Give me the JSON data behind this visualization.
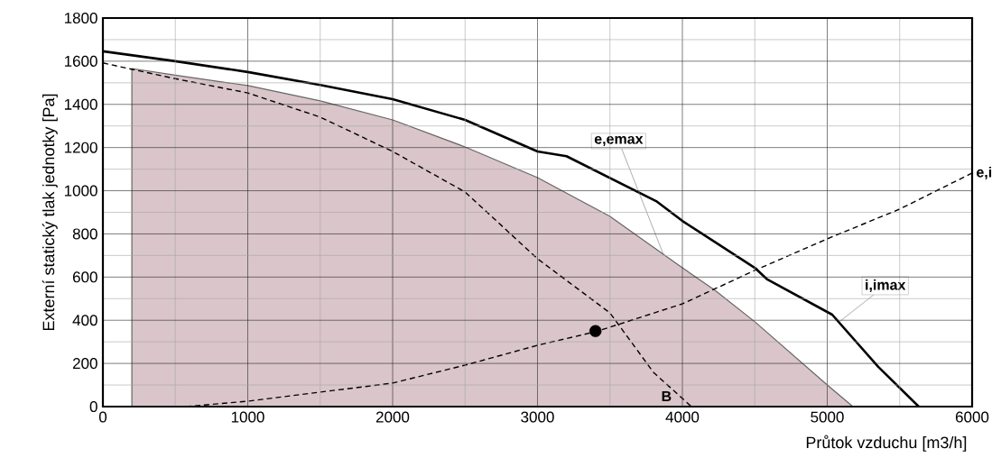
{
  "chart_data": {
    "type": "line",
    "xlabel": "Průtok vzduchu [m3/h]",
    "ylabel": "Externí statický tlak jednotky [Pa]",
    "xlim": [
      0,
      6000
    ],
    "ylim": [
      0,
      1800
    ],
    "xticks": [
      0,
      1000,
      2000,
      3000,
      4000,
      5000,
      6000
    ],
    "yticks": [
      0,
      200,
      400,
      600,
      800,
      1000,
      1200,
      1400,
      1600,
      1800
    ],
    "grid": true,
    "series": [
      {
        "type": "area",
        "color": "#d9c5ca",
        "x": [
          200,
          500,
          1000,
          1500,
          2000,
          2500,
          3000,
          3500,
          4000,
          4225,
          4500,
          5000,
          5177
        ],
        "values": [
          1566,
          1535,
          1487,
          1416,
          1328,
          1203,
          1061,
          881,
          643,
          539,
          393,
          100,
          0
        ]
      },
      {
        "color": "#000000",
        "line_style": "solid",
        "x": [
          0,
          500,
          1000,
          1500,
          2000,
          2500,
          3000,
          3200,
          3819,
          4000,
          4500,
          4586,
          5034,
          5352,
          5632
        ],
        "values": [
          1646,
          1600,
          1550,
          1490,
          1424,
          1328,
          1182,
          1160,
          952,
          860,
          643,
          589,
          426,
          184,
          0
        ]
      },
      {
        "color": "#000000",
        "line_style": "dashed",
        "x": [
          0,
          492,
          1000,
          1500,
          2000,
          2500,
          3000,
          3500,
          3800,
          4062
        ],
        "values": [
          1592,
          1520,
          1453,
          1341,
          1182,
          994,
          685,
          434,
          159,
          0
        ]
      },
      {
        "color": "#000000",
        "line_style": "dashed",
        "x": [
          573,
          1000,
          2000,
          2500,
          3000,
          3402,
          4000,
          4500,
          5000,
          5500,
          6000
        ],
        "values": [
          0,
          25,
          109,
          192,
          284,
          347,
          476,
          631,
          777,
          915,
          1082
        ]
      },
      {
        "type": "scatter",
        "color": "#000000",
        "marker": "circle",
        "x": [
          3400
        ],
        "values": [
          350
        ]
      }
    ],
    "annotations": [
      {
        "text": "e,emax",
        "x": 3869,
        "y": 705
      },
      {
        "text": "i,imax",
        "x": 5080,
        "y": 391
      },
      "B",
      "e,i"
    ]
  }
}
